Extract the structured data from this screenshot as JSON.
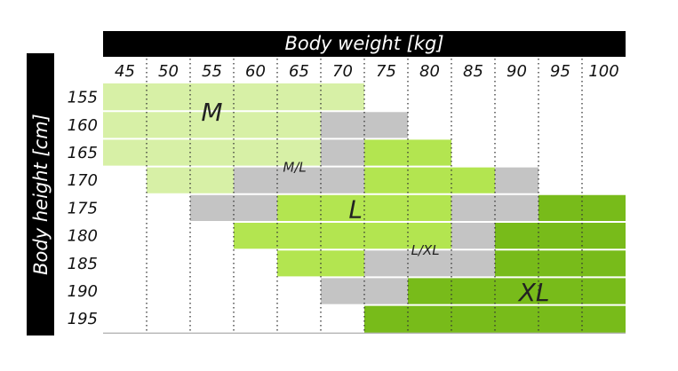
{
  "chart_data": {
    "type": "table",
    "xlabel": "Body weight [kg]",
    "ylabel": "Body height [cm]",
    "x_ticks": [
      "45",
      "50",
      "55",
      "60",
      "65",
      "70",
      "75",
      "80",
      "85",
      "90",
      "95",
      "100"
    ],
    "y_ticks": [
      "155",
      "160",
      "165",
      "170",
      "175",
      "180",
      "185",
      "190",
      "195"
    ],
    "size_labels": {
      "M": "M",
      "ML": "M/L",
      "L": "L",
      "LXL": "L/XL",
      "XL": "XL"
    },
    "colors": {
      "M": "#d7f0a6",
      "ML": "#c4c4c4",
      "L": "#b3e550",
      "LXL": "#c4c4c4",
      "XL": "#78bb1a"
    },
    "grid": "dotted vertical",
    "rows": [
      {
        "height": "155",
        "cells": [
          "M",
          "M",
          "M",
          "M",
          "M",
          "M",
          "",
          "",
          "",
          "",
          "",
          ""
        ]
      },
      {
        "height": "160",
        "cells": [
          "M",
          "M",
          "M",
          "M",
          "M",
          "ML",
          "ML",
          "",
          "",
          "",
          "",
          ""
        ]
      },
      {
        "height": "165",
        "cells": [
          "M",
          "M",
          "M",
          "M",
          "M",
          "ML",
          "L",
          "L",
          "",
          "",
          "",
          ""
        ]
      },
      {
        "height": "170",
        "cells": [
          "",
          "M",
          "M",
          "ML",
          "ML",
          "ML",
          "L",
          "L",
          "L",
          "LXL",
          "",
          ""
        ]
      },
      {
        "height": "175",
        "cells": [
          "",
          "",
          "ML",
          "ML",
          "L",
          "L",
          "L",
          "L",
          "LXL",
          "LXL",
          "XL",
          "XL"
        ]
      },
      {
        "height": "180",
        "cells": [
          "",
          "",
          "",
          "L",
          "L",
          "L",
          "L",
          "L",
          "LXL",
          "XL",
          "XL",
          "XL"
        ]
      },
      {
        "height": "185",
        "cells": [
          "",
          "",
          "",
          "",
          "L",
          "L",
          "LXL",
          "LXL",
          "LXL",
          "XL",
          "XL",
          "XL"
        ]
      },
      {
        "height": "190",
        "cells": [
          "",
          "",
          "",
          "",
          "",
          "LXL",
          "LXL",
          "XL",
          "XL",
          "XL",
          "XL",
          "XL"
        ]
      },
      {
        "height": "195",
        "cells": [
          "",
          "",
          "",
          "",
          "",
          "",
          "XL",
          "XL",
          "XL",
          "XL",
          "XL",
          "XL"
        ]
      }
    ],
    "labels": [
      {
        "text": "M",
        "row": 1,
        "col": 2.5,
        "size": "big"
      },
      {
        "text": "M/L",
        "row": 3,
        "col": 4.4,
        "size": "small"
      },
      {
        "text": "L",
        "row": 4.5,
        "col": 5.8,
        "size": "big"
      },
      {
        "text": "L/XL",
        "row": 6,
        "col": 7.4,
        "size": "small"
      },
      {
        "text": "XL",
        "row": 7.5,
        "col": 9.9,
        "size": "big"
      }
    ]
  }
}
